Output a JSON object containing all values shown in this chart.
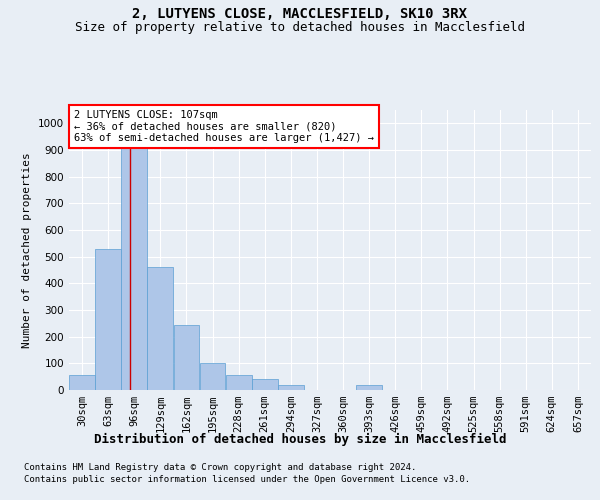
{
  "title1": "2, LUTYENS CLOSE, MACCLESFIELD, SK10 3RX",
  "title2": "Size of property relative to detached houses in Macclesfield",
  "xlabel": "Distribution of detached houses by size in Macclesfield",
  "ylabel": "Number of detached properties",
  "footnote1": "Contains HM Land Registry data © Crown copyright and database right 2024.",
  "footnote2": "Contains public sector information licensed under the Open Government Licence v3.0.",
  "annotation_line1": "2 LUTYENS CLOSE: 107sqm",
  "annotation_line2": "← 36% of detached houses are smaller (820)",
  "annotation_line3": "63% of semi-detached houses are larger (1,427) →",
  "bar_color": "#aec6e8",
  "bar_edge_color": "#5a9fd4",
  "vline_color": "#cc0000",
  "vline_x": 107,
  "bin_edges": [
    30,
    63,
    96,
    129,
    162,
    195,
    228,
    261,
    294,
    327,
    360,
    393,
    426,
    459,
    492,
    525,
    558,
    591,
    624,
    657,
    690
  ],
  "bar_heights": [
    55,
    530,
    930,
    460,
    245,
    100,
    55,
    40,
    20,
    0,
    0,
    20,
    0,
    0,
    0,
    0,
    0,
    0,
    0,
    0
  ],
  "ylim": [
    0,
    1050
  ],
  "yticks": [
    0,
    100,
    200,
    300,
    400,
    500,
    600,
    700,
    800,
    900,
    1000
  ],
  "background_color": "#e8eef5",
  "plot_bg_color": "#e8eef5",
  "grid_color": "#ffffff",
  "title1_fontsize": 10,
  "title2_fontsize": 9,
  "xlabel_fontsize": 9,
  "ylabel_fontsize": 8,
  "tick_fontsize": 7.5,
  "annotation_fontsize": 7.5,
  "footnote_fontsize": 6.5
}
